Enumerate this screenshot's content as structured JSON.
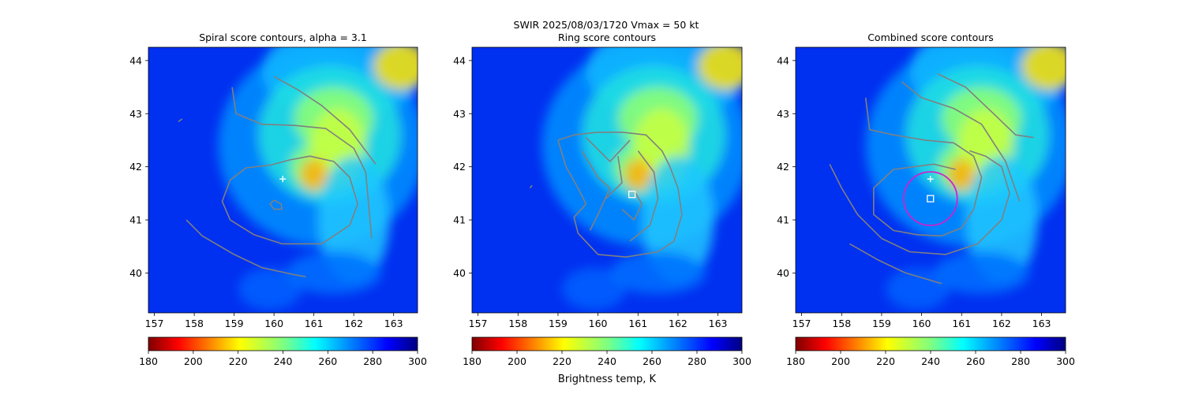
{
  "suptitle": "SWIR  2025/08/03/1720    Vmax = 50 kt",
  "colorbar_label": "Brightness temp, K",
  "chart_data": [
    {
      "type": "heatmap",
      "title": "Spiral score contours, alpha =  3.1",
      "xlim": [
        156.85,
        163.6
      ],
      "ylim": [
        39.25,
        44.25
      ],
      "xticks": [
        "157",
        "158",
        "159",
        "160",
        "161",
        "162",
        "163"
      ],
      "yticks": [
        "40",
        "41",
        "42",
        "43",
        "44"
      ],
      "colorbar": {
        "range": [
          180,
          300
        ],
        "ticks": [
          "180",
          "200",
          "220",
          "240",
          "260",
          "280",
          "300"
        ],
        "colormap": "jet_r"
      },
      "markers": [
        {
          "symbol": "plus",
          "color": "#ffffff",
          "x": 160.22,
          "y": 41.77
        }
      ],
      "contour_color": "#808080",
      "contours": [
        [
          [
            159.9,
            42.03
          ],
          [
            159.3,
            41.98
          ],
          [
            158.9,
            41.75
          ],
          [
            158.7,
            41.35
          ],
          [
            158.9,
            41.0
          ],
          [
            159.5,
            40.72
          ],
          [
            160.2,
            40.55
          ],
          [
            161.2,
            40.55
          ],
          [
            161.9,
            40.9
          ],
          [
            162.1,
            41.3
          ],
          [
            161.9,
            41.8
          ],
          [
            161.5,
            42.1
          ],
          [
            160.9,
            42.2
          ],
          [
            160.4,
            42.13
          ],
          [
            159.9,
            42.03
          ]
        ],
        [
          [
            158.95,
            43.5
          ],
          [
            159.05,
            43.0
          ],
          [
            159.7,
            42.8
          ],
          [
            160.5,
            42.78
          ],
          [
            161.3,
            42.72
          ],
          [
            162.0,
            42.35
          ],
          [
            162.3,
            41.9
          ],
          [
            162.45,
            40.65
          ]
        ],
        [
          [
            157.8,
            41.0
          ],
          [
            158.2,
            40.7
          ],
          [
            159.0,
            40.35
          ],
          [
            159.7,
            40.1
          ],
          [
            160.5,
            39.97
          ],
          [
            160.8,
            39.93
          ]
        ],
        [
          [
            160.0,
            43.7
          ],
          [
            160.6,
            43.45
          ],
          [
            161.2,
            43.15
          ],
          [
            161.9,
            42.7
          ],
          [
            162.55,
            42.05
          ]
        ],
        [
          [
            157.6,
            42.85
          ],
          [
            157.7,
            42.9
          ]
        ],
        [
          [
            160.0,
            41.37
          ],
          [
            160.18,
            41.3
          ],
          [
            160.2,
            41.2
          ],
          [
            160.0,
            41.2
          ],
          [
            159.9,
            41.3
          ],
          [
            160.0,
            41.37
          ]
        ]
      ]
    },
    {
      "type": "heatmap",
      "title": "Ring score contours",
      "xlim": [
        156.85,
        163.6
      ],
      "ylim": [
        39.25,
        44.25
      ],
      "xticks": [
        "157",
        "158",
        "159",
        "160",
        "161",
        "162",
        "163"
      ],
      "yticks": [
        "40",
        "41",
        "42",
        "43",
        "44"
      ],
      "colorbar": {
        "range": [
          180,
          300
        ],
        "ticks": [
          "180",
          "200",
          "220",
          "240",
          "260",
          "280",
          "300"
        ],
        "colormap": "jet_r"
      },
      "markers": [
        {
          "symbol": "square",
          "color": "#ffffff",
          "x": 160.85,
          "y": 41.48
        }
      ],
      "contour_color": "#808080",
      "contours": [
        [
          [
            159.0,
            42.5
          ],
          [
            159.4,
            42.6
          ],
          [
            160.0,
            42.65
          ],
          [
            160.6,
            42.65
          ],
          [
            161.2,
            42.6
          ],
          [
            161.6,
            42.3
          ],
          [
            161.8,
            42.0
          ],
          [
            162.0,
            41.6
          ],
          [
            162.1,
            41.1
          ],
          [
            161.9,
            40.6
          ],
          [
            161.5,
            40.4
          ],
          [
            160.7,
            40.3
          ],
          [
            160.0,
            40.35
          ],
          [
            159.5,
            40.75
          ],
          [
            159.4,
            41.05
          ],
          [
            159.7,
            41.3
          ],
          [
            159.5,
            41.6
          ],
          [
            159.2,
            42.0
          ],
          [
            159.0,
            42.5
          ]
        ],
        [
          [
            159.6,
            42.3
          ],
          [
            160.0,
            41.8
          ],
          [
            160.3,
            41.6
          ],
          [
            160.0,
            41.1
          ],
          [
            159.8,
            40.8
          ]
        ],
        [
          [
            160.5,
            42.2
          ],
          [
            160.6,
            41.7
          ],
          [
            160.2,
            41.4
          ]
        ],
        [
          [
            161.0,
            42.3
          ],
          [
            161.4,
            41.9
          ],
          [
            161.5,
            41.4
          ],
          [
            161.3,
            40.9
          ],
          [
            160.8,
            40.6
          ]
        ],
        [
          [
            160.6,
            41.2
          ],
          [
            160.9,
            41.0
          ],
          [
            161.1,
            41.3
          ],
          [
            160.9,
            41.55
          ]
        ],
        [
          [
            159.7,
            42.55
          ],
          [
            160.3,
            42.1
          ],
          [
            160.8,
            42.5
          ]
        ],
        [
          [
            158.3,
            41.6
          ],
          [
            158.35,
            41.65
          ]
        ]
      ]
    },
    {
      "type": "heatmap",
      "title": "Combined score contours",
      "xlim": [
        156.85,
        163.6
      ],
      "ylim": [
        39.25,
        44.25
      ],
      "xticks": [
        "157",
        "158",
        "159",
        "160",
        "161",
        "162",
        "163"
      ],
      "yticks": [
        "40",
        "41",
        "42",
        "43",
        "44"
      ],
      "colorbar": {
        "range": [
          180,
          300
        ],
        "ticks": [
          "180",
          "200",
          "220",
          "240",
          "260",
          "280",
          "300"
        ],
        "colormap": "jet_r"
      },
      "markers": [
        {
          "symbol": "plus",
          "color": "#ffffff",
          "x": 160.22,
          "y": 41.77
        },
        {
          "symbol": "square",
          "color": "#ffffff",
          "x": 160.22,
          "y": 41.4
        },
        {
          "symbol": "circle",
          "color": "#cc22cc",
          "x": 160.22,
          "y": 41.4,
          "radius_deg": 0.67
        }
      ],
      "contour_color": "#808080",
      "contours": [
        [
          [
            158.6,
            43.3
          ],
          [
            158.7,
            42.7
          ],
          [
            159.3,
            42.6
          ],
          [
            160.1,
            42.5
          ],
          [
            160.8,
            42.45
          ],
          [
            161.3,
            42.2
          ],
          [
            161.5,
            41.8
          ],
          [
            161.3,
            41.2
          ],
          [
            161.0,
            40.85
          ],
          [
            160.5,
            40.7
          ],
          [
            159.9,
            40.72
          ],
          [
            159.3,
            40.8
          ],
          [
            158.8,
            41.1
          ],
          [
            158.8,
            41.6
          ],
          [
            159.3,
            41.95
          ],
          [
            160.3,
            42.05
          ],
          [
            160.85,
            41.95
          ]
        ],
        [
          [
            158.2,
            40.55
          ],
          [
            158.9,
            40.25
          ],
          [
            159.6,
            40.0
          ],
          [
            160.5,
            39.8
          ]
        ],
        [
          [
            157.7,
            42.05
          ],
          [
            158.0,
            41.6
          ],
          [
            158.4,
            41.1
          ],
          [
            159.0,
            40.65
          ],
          [
            159.7,
            40.4
          ],
          [
            160.6,
            40.35
          ],
          [
            161.4,
            40.55
          ],
          [
            162.0,
            41.0
          ],
          [
            162.2,
            41.5
          ],
          [
            162.0,
            42.0
          ],
          [
            161.6,
            42.2
          ],
          [
            161.2,
            42.3
          ]
        ],
        [
          [
            159.5,
            43.6
          ],
          [
            160.0,
            43.3
          ],
          [
            160.8,
            43.1
          ],
          [
            161.5,
            42.8
          ],
          [
            162.1,
            42.1
          ],
          [
            162.45,
            41.35
          ]
        ],
        [
          [
            160.4,
            43.75
          ],
          [
            161.1,
            43.5
          ],
          [
            161.8,
            43.0
          ],
          [
            162.35,
            42.6
          ],
          [
            162.8,
            42.55
          ]
        ]
      ]
    }
  ]
}
